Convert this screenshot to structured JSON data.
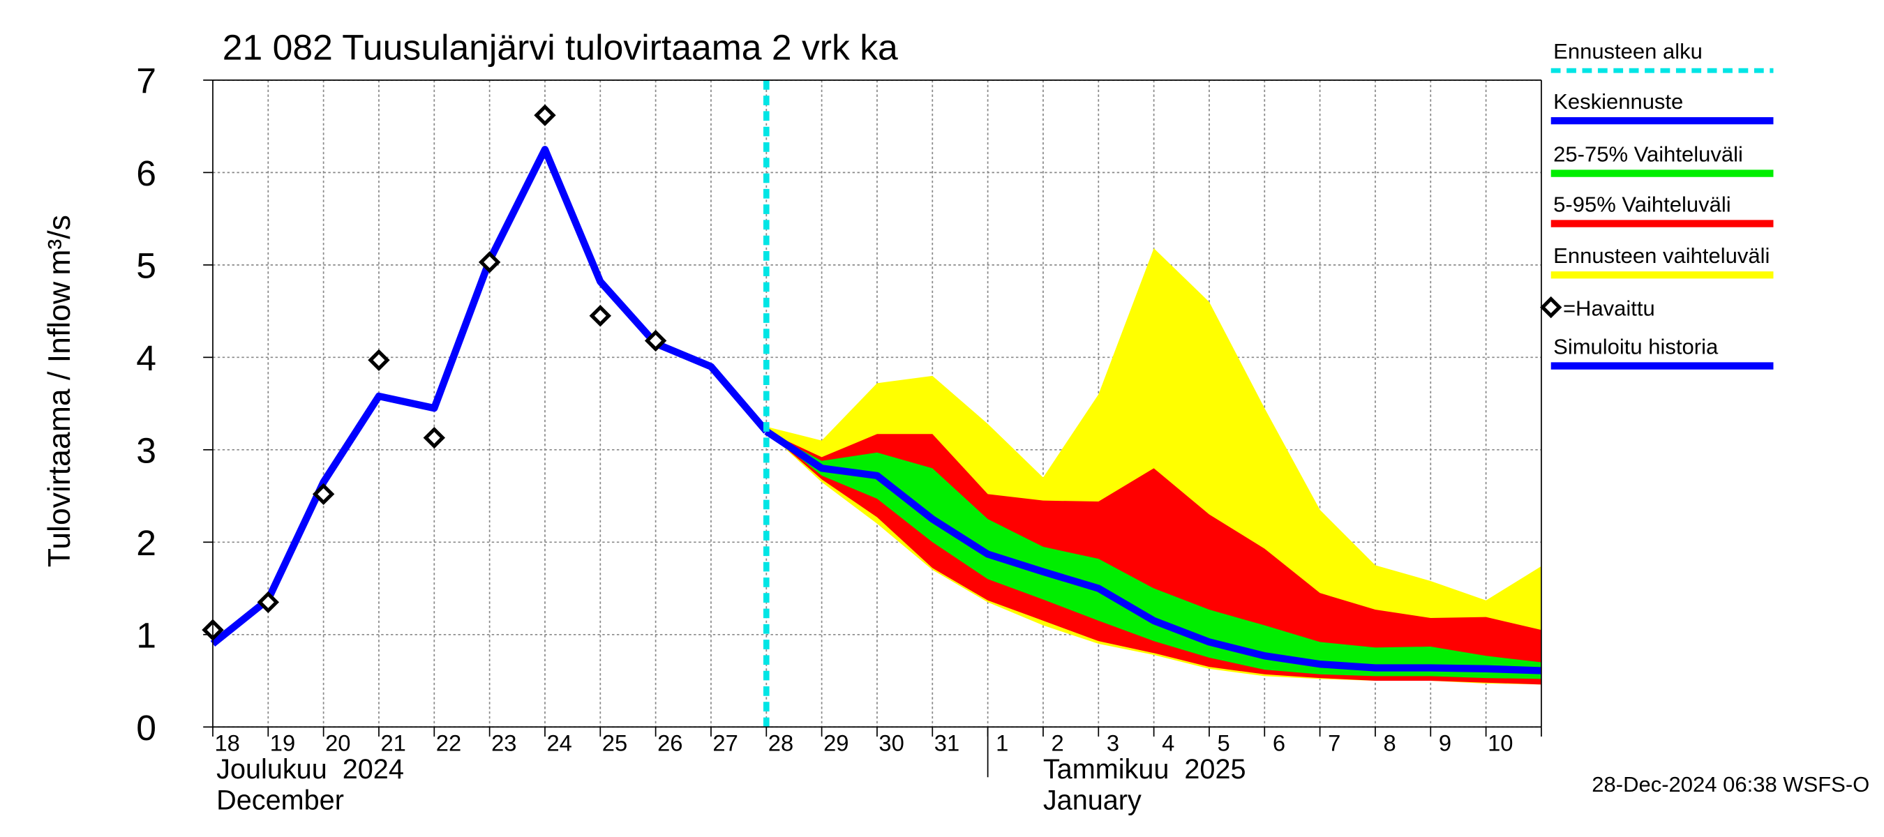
{
  "chart_data": {
    "type": "line",
    "title": "21 082 Tuusulanjärvi tulovirtaama 2 vrk ka",
    "y_label": "Tulovirtaama / Inflow",
    "y_unit": "m³/s",
    "categories": [
      "18",
      "19",
      "20",
      "21",
      "22",
      "23",
      "24",
      "25",
      "26",
      "27",
      "28",
      "29",
      "30",
      "31",
      "1",
      "2",
      "3",
      "4",
      "5",
      "6",
      "7",
      "8",
      "9",
      "10",
      null
    ],
    "months": [
      {
        "category": 0,
        "label": "Joulukuu  2024",
        "label_en": "December"
      },
      {
        "category": 14,
        "label": "Tammikuu  2025",
        "label_en": "January"
      }
    ],
    "ylim": [
      0,
      7
    ],
    "yticks": [
      0,
      1,
      2,
      3,
      4,
      5,
      6,
      7
    ],
    "grid": true,
    "forecast_start": {
      "name": "Ennusteen alku",
      "color": "#00e5e5",
      "category": 10
    },
    "series": [
      {
        "name": "Keskiennuste",
        "color": "#0000ff",
        "kind": "line",
        "values": [
          null,
          null,
          null,
          null,
          null,
          null,
          null,
          null,
          null,
          null,
          3.2,
          2.8,
          2.72,
          2.25,
          1.87,
          1.68,
          1.5,
          1.15,
          0.92,
          0.77,
          0.68,
          0.64,
          0.64,
          0.63,
          0.61
        ]
      },
      {
        "name": "25-75% Vaihteluväli",
        "color": "#00ee00",
        "kind": "band",
        "values": [
          null,
          null,
          null,
          null,
          null,
          null,
          null,
          null,
          null,
          null,
          3.2,
          2.88,
          2.97,
          2.8,
          2.25,
          1.95,
          1.82,
          1.5,
          1.27,
          1.1,
          0.92,
          0.86,
          0.87,
          0.77,
          0.7
        ],
        "lower": [
          null,
          null,
          null,
          null,
          null,
          null,
          null,
          null,
          null,
          null,
          3.2,
          2.72,
          2.47,
          2.0,
          1.6,
          1.38,
          1.15,
          0.93,
          0.75,
          0.62,
          0.57,
          0.55,
          0.55,
          0.53,
          0.52
        ]
      },
      {
        "name": "5-95% Vaihteluväli",
        "color": "#ff0000",
        "kind": "band",
        "values": [
          null,
          null,
          null,
          null,
          null,
          null,
          null,
          null,
          null,
          null,
          3.2,
          2.92,
          3.17,
          3.17,
          2.52,
          2.45,
          2.44,
          2.8,
          2.3,
          1.93,
          1.45,
          1.27,
          1.18,
          1.19,
          1.05
        ],
        "lower": [
          null,
          null,
          null,
          null,
          null,
          null,
          null,
          null,
          null,
          null,
          3.2,
          2.68,
          2.27,
          1.72,
          1.37,
          1.15,
          0.93,
          0.8,
          0.65,
          0.57,
          0.53,
          0.5,
          0.5,
          0.48,
          0.46
        ]
      },
      {
        "name": "Ennusteen vaihteluväli",
        "color": "#ffff00",
        "kind": "band",
        "values": [
          null,
          null,
          null,
          null,
          null,
          null,
          null,
          null,
          null,
          null,
          3.25,
          3.1,
          3.72,
          3.8,
          3.28,
          2.7,
          3.6,
          5.18,
          4.6,
          3.45,
          2.35,
          1.75,
          1.58,
          1.37,
          1.74
        ],
        "lower": [
          null,
          null,
          null,
          null,
          null,
          null,
          null,
          null,
          null,
          null,
          3.2,
          2.65,
          2.2,
          1.7,
          1.35,
          1.1,
          0.9,
          0.78,
          0.63,
          0.55,
          0.52,
          0.5,
          0.5,
          0.47,
          0.46
        ]
      },
      {
        "name": "=Havaittu",
        "color": "#000000",
        "kind": "marker",
        "values": [
          1.05,
          1.35,
          2.52,
          3.97,
          3.13,
          5.03,
          6.62,
          4.45,
          4.18,
          null,
          null,
          null,
          null,
          null,
          null,
          null,
          null,
          null,
          null,
          null,
          null,
          null,
          null,
          null,
          null
        ]
      },
      {
        "name": "Simuloitu historia",
        "color": "#0000ff",
        "kind": "line",
        "values": [
          0.9,
          1.38,
          2.65,
          3.58,
          3.45,
          5.05,
          6.25,
          4.82,
          4.15,
          3.9,
          3.2,
          null,
          null,
          null,
          null,
          null,
          null,
          null,
          null,
          null,
          null,
          null,
          null,
          null,
          null
        ]
      }
    ],
    "footer": "28-Dec-2024 06:38 WSFS-O"
  }
}
